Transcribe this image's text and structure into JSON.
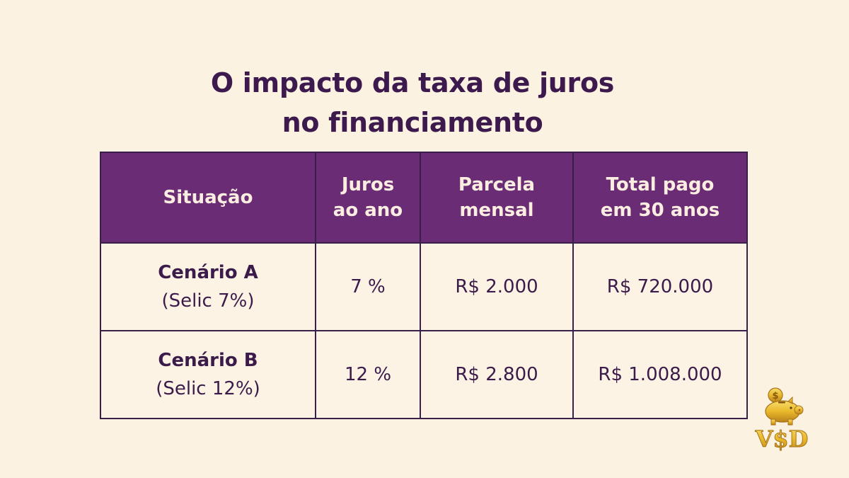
{
  "title": {
    "line1": "O impacto da taxa de juros",
    "line2": "no financiamento"
  },
  "table": {
    "headers": [
      {
        "line1": "Situação",
        "line2": ""
      },
      {
        "line1": "Juros",
        "line2": "ao ano"
      },
      {
        "line1": "Parcela",
        "line2": "mensal"
      },
      {
        "line1": "Total pago",
        "line2": "em 30 anos"
      }
    ],
    "rows": [
      {
        "scenario": "Cenário A",
        "selic": "(Selic 7%)",
        "rate": "7 %",
        "installment": "R$ 2.000",
        "total": "R$ 720.000"
      },
      {
        "scenario": "Cenário B",
        "selic": "(Selic 12%)",
        "rate": "12 %",
        "installment": "R$ 2.800",
        "total": "R$ 1.008.000"
      }
    ]
  },
  "logo": {
    "text": "V$D",
    "icon": "piggy-bank-coin-icon"
  },
  "colors": {
    "background": "#fcf2e2",
    "header": "#6b2c76",
    "text": "#3b1b4a",
    "logo_gold": "#e9b82c"
  }
}
